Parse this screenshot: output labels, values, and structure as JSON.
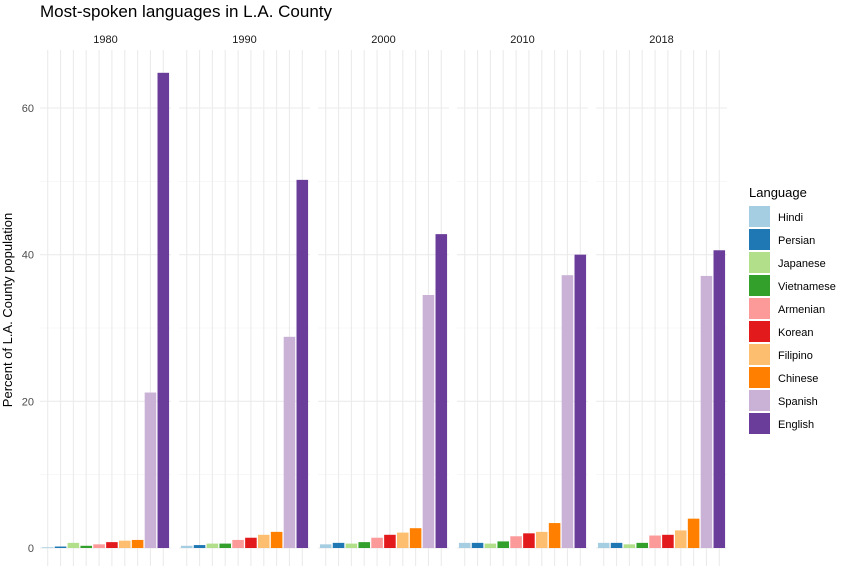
{
  "chart_data": {
    "type": "bar",
    "title": "Most-spoken languages in L.A. County",
    "xlabel": "",
    "ylabel": "Percent of L.A. County population",
    "ylim": [
      0,
      68
    ],
    "yticks": [
      0,
      20,
      40,
      60
    ],
    "facets": [
      "1980",
      "1990",
      "2000",
      "2010",
      "2018"
    ],
    "categories": [
      "Hindi",
      "Persian",
      "Japanese",
      "Vietnamese",
      "Armenian",
      "Korean",
      "Filipino",
      "Chinese",
      "Spanish",
      "English"
    ],
    "colors": [
      "#a6cee3",
      "#1f78b4",
      "#b2df8a",
      "#33a02c",
      "#fb9a99",
      "#e31a1c",
      "#fdbf6f",
      "#ff7f00",
      "#cab2d6",
      "#6a3d9a"
    ],
    "series": [
      {
        "facet": "1980",
        "values": [
          0.1,
          0.2,
          0.7,
          0.3,
          0.5,
          0.8,
          1.0,
          1.1,
          21.2,
          64.8
        ]
      },
      {
        "facet": "1990",
        "values": [
          0.3,
          0.4,
          0.6,
          0.6,
          1.1,
          1.4,
          1.8,
          2.2,
          28.8,
          50.2
        ]
      },
      {
        "facet": "2000",
        "values": [
          0.5,
          0.7,
          0.6,
          0.8,
          1.4,
          1.8,
          2.1,
          2.7,
          34.5,
          42.8
        ]
      },
      {
        "facet": "2010",
        "values": [
          0.7,
          0.7,
          0.6,
          0.9,
          1.6,
          2.0,
          2.2,
          3.4,
          37.2,
          40.0
        ]
      },
      {
        "facet": "2018",
        "values": [
          0.7,
          0.7,
          0.5,
          0.7,
          1.7,
          1.8,
          2.4,
          4.0,
          37.1,
          40.6
        ]
      }
    ],
    "legend": {
      "title": "Language",
      "position": "right"
    },
    "grid": true
  }
}
